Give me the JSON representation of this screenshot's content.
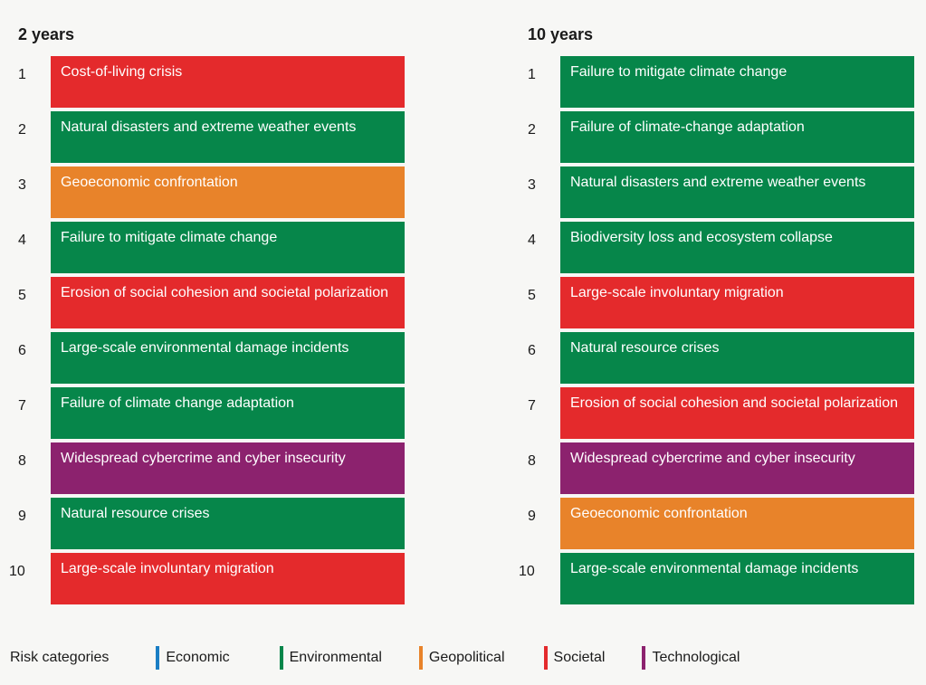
{
  "colors": {
    "Economic": "#1a7ec4",
    "Environmental": "#06864a",
    "Geopolitical": "#e8832a",
    "Societal": "#e42a2c",
    "Technological": "#8c226e"
  },
  "chart_data": {
    "type": "table",
    "title": "",
    "columns": [
      {
        "heading": "2 years",
        "items": [
          {
            "rank": "1",
            "label": "Cost-of-living crisis",
            "category": "Societal"
          },
          {
            "rank": "2",
            "label": "Natural disasters and extreme weather events",
            "category": "Environmental"
          },
          {
            "rank": "3",
            "label": "Geoeconomic confrontation",
            "category": "Geopolitical"
          },
          {
            "rank": "4",
            "label": "Failure to mitigate climate change",
            "category": "Environmental"
          },
          {
            "rank": "5",
            "label": "Erosion of social cohesion and societal polarization",
            "category": "Societal"
          },
          {
            "rank": "6",
            "label": "Large-scale environmental damage incidents",
            "category": "Environmental"
          },
          {
            "rank": "7",
            "label": "Failure of climate change adaptation",
            "category": "Environmental"
          },
          {
            "rank": "8",
            "label": "Widespread cybercrime and cyber insecurity",
            "category": "Technological"
          },
          {
            "rank": "9",
            "label": "Natural resource crises",
            "category": "Environmental"
          },
          {
            "rank": "10",
            "label": "Large-scale involuntary migration",
            "category": "Societal"
          }
        ]
      },
      {
        "heading": "10 years",
        "items": [
          {
            "rank": "1",
            "label": "Failure to mitigate climate change",
            "category": "Environmental"
          },
          {
            "rank": "2",
            "label": "Failure of climate-change adaptation",
            "category": "Environmental"
          },
          {
            "rank": "3",
            "label": "Natural disasters and extreme weather events",
            "category": "Environmental"
          },
          {
            "rank": "4",
            "label": "Biodiversity loss and ecosystem collapse",
            "category": "Environmental"
          },
          {
            "rank": "5",
            "label": "Large-scale involuntary migration",
            "category": "Societal"
          },
          {
            "rank": "6",
            "label": "Natural resource crises",
            "category": "Environmental"
          },
          {
            "rank": "7",
            "label": "Erosion of social cohesion and societal polarization",
            "category": "Societal"
          },
          {
            "rank": "8",
            "label": "Widespread cybercrime and cyber insecurity",
            "category": "Technological"
          },
          {
            "rank": "9",
            "label": "Geoeconomic confrontation",
            "category": "Geopolitical"
          },
          {
            "rank": "10",
            "label": "Large-scale environmental damage incidents",
            "category": "Environmental"
          }
        ]
      }
    ],
    "legend": {
      "title": "Risk categories",
      "placement": "bottom",
      "entries": [
        "Economic",
        "Environmental",
        "Geopolitical",
        "Societal",
        "Technological"
      ]
    }
  }
}
